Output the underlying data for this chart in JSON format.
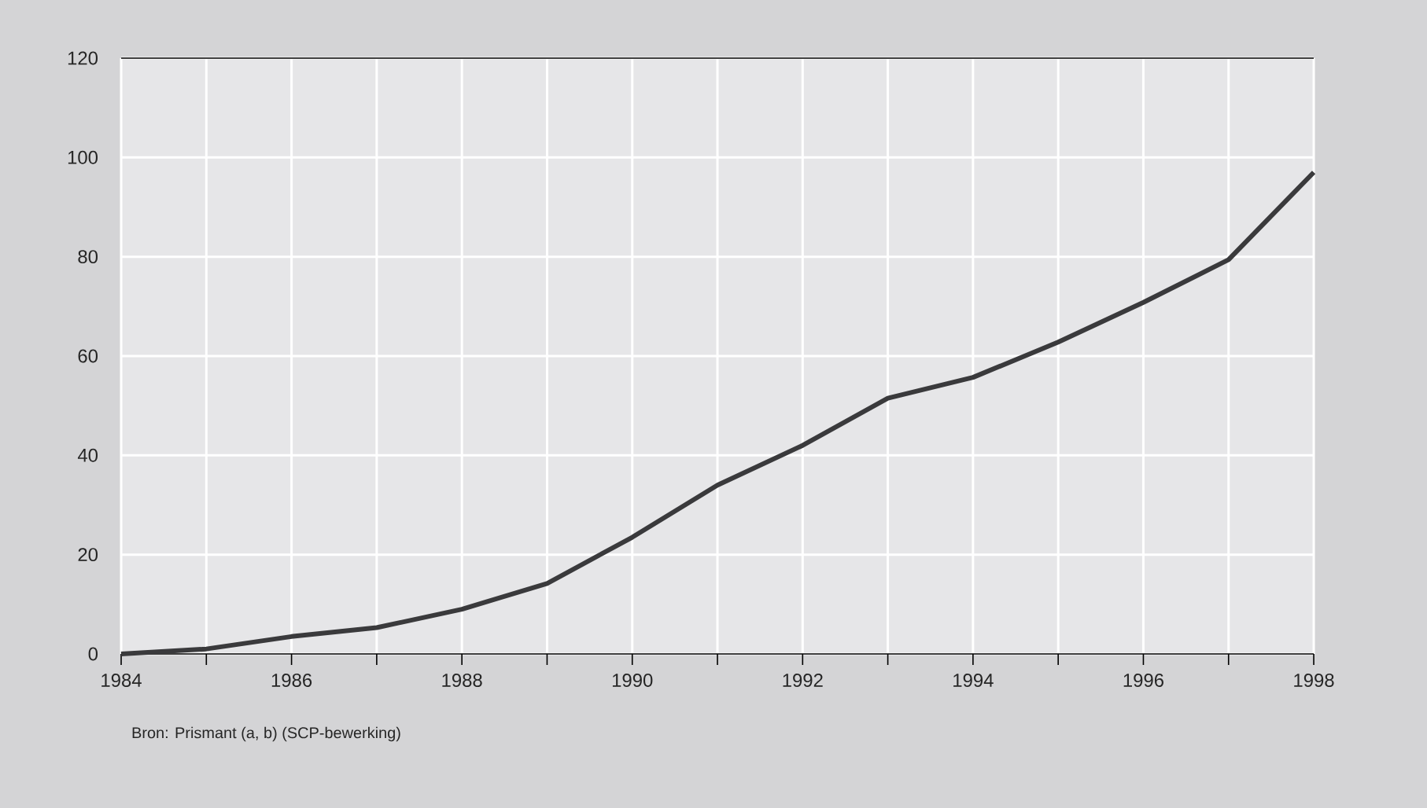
{
  "chart_data": {
    "type": "line",
    "x": [
      1984,
      1985,
      1986,
      1987,
      1988,
      1989,
      1990,
      1991,
      1992,
      1993,
      1994,
      1995,
      1996,
      1997,
      1998
    ],
    "series": [
      {
        "color": "#3a3a3c",
        "values": [
          0,
          1,
          3.5,
          5.3,
          9,
          14.2,
          23.5,
          34,
          42,
          51.5,
          55.7,
          62.8,
          70.8,
          79.4,
          97
        ]
      }
    ],
    "xlim": [
      1984,
      1998
    ],
    "xticks": [
      1984,
      {
        "value": 1985,
        "label": null
      },
      1986,
      {
        "value": 1987,
        "label": null
      },
      1988,
      {
        "value": 1989,
        "label": null
      },
      1990,
      {
        "value": 1991,
        "label": null
      },
      1992,
      {
        "value": 1993,
        "label": null
      },
      1994,
      {
        "value": 1995,
        "label": null
      },
      1996,
      {
        "value": 1997,
        "label": null
      },
      1998
    ],
    "ylim": [
      0,
      120
    ],
    "yticks": [
      0,
      20,
      40,
      60,
      80,
      100,
      120
    ],
    "grid": true,
    "line_style": "solid",
    "marker": "none",
    "annotations": [
      "Bron: Prismant (a, b) (SCP-bewerking)"
    ]
  }
}
